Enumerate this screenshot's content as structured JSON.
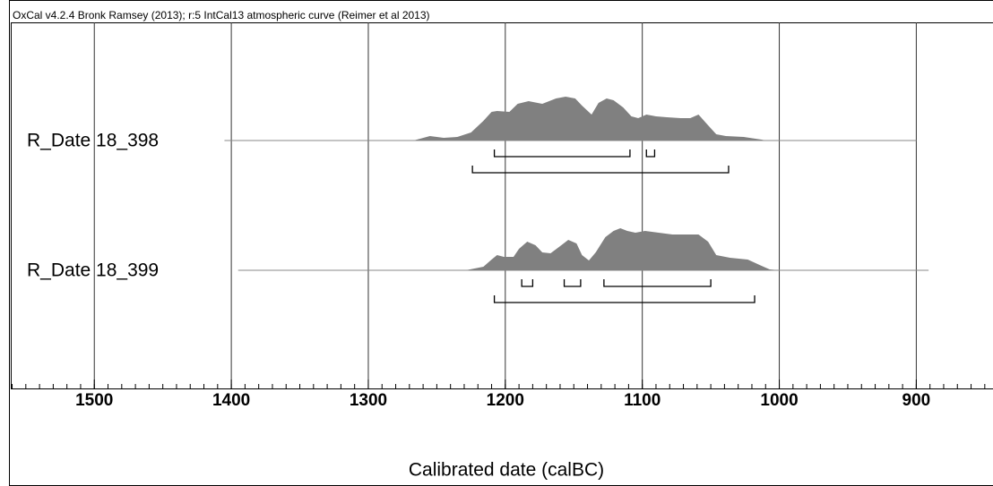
{
  "chart_data": {
    "type": "oxcal",
    "title": "OxCal v4.2.4 Bronk Ramsey (2013); r:5 IntCal13 atmospheric curve (Reimer et al 2013)",
    "x_label": "Calibrated date (calBC)",
    "xlim": [
      1561,
      844
    ],
    "xticks": [
      1500,
      1400,
      1300,
      1200,
      1100,
      1000,
      900
    ],
    "minor_xticks": [
      1560,
      1550,
      1540,
      1530,
      1520,
      1510,
      1500,
      1490,
      1480,
      1470,
      1460,
      1450,
      1440,
      1430,
      1420,
      1410,
      1400,
      1390,
      1380,
      1370,
      1360,
      1350,
      1340,
      1330,
      1320,
      1310,
      1300,
      1290,
      1280,
      1270,
      1260,
      1250,
      1240,
      1230,
      1220,
      1210,
      1200,
      1190,
      1180,
      1170,
      1160,
      1150,
      1140,
      1130,
      1120,
      1110,
      1100,
      1090,
      1080,
      1070,
      1060,
      1050,
      1040,
      1030,
      1020,
      1010,
      1000,
      990,
      980,
      970,
      960,
      950,
      940,
      930,
      920,
      910,
      900,
      890,
      880,
      870,
      860,
      850
    ],
    "grid": true,
    "color": "#808080",
    "series": [
      {
        "name": "R_Date 18_398",
        "range": [
          1405,
          900
        ],
        "x": [
          1267,
          1255,
          1245,
          1235,
          1225,
          1216,
          1210,
          1206,
          1197,
          1191,
          1183,
          1173,
          1163,
          1156,
          1149,
          1144,
          1137,
          1132,
          1126,
          1121,
          1114,
          1108,
          1103,
          1097,
          1090,
          1082,
          1072,
          1065,
          1059,
          1052,
          1046,
          1039,
          1026,
          1013,
          1010
        ],
        "values": [
          0,
          0.1,
          0.06,
          0.08,
          0.18,
          0.44,
          0.64,
          0.66,
          0.64,
          0.82,
          0.88,
          0.82,
          0.94,
          0.98,
          0.94,
          0.78,
          0.58,
          0.84,
          0.94,
          0.9,
          0.74,
          0.54,
          0.5,
          0.58,
          0.54,
          0.52,
          0.5,
          0.5,
          0.58,
          0.34,
          0.14,
          0.1,
          0.08,
          0.02,
          0
        ],
        "ranges_68": [
          [
            1208,
            1109
          ],
          [
            1097,
            1091
          ]
        ],
        "ranges_95": [
          [
            1224,
            1037
          ]
        ]
      },
      {
        "name": "R_Date 18_399",
        "range": [
          1395,
          891
        ],
        "x": [
          1229,
          1216,
          1210,
          1206,
          1201,
          1194,
          1190,
          1184,
          1178,
          1173,
          1167,
          1160,
          1154,
          1148,
          1144,
          1139,
          1134,
          1127,
          1121,
          1116,
          1111,
          1105,
          1098,
          1088,
          1078,
          1069,
          1059,
          1052,
          1046,
          1036,
          1023,
          1013,
          1007,
          1000
        ],
        "values": [
          0,
          0.08,
          0.24,
          0.34,
          0.3,
          0.3,
          0.48,
          0.64,
          0.56,
          0.4,
          0.38,
          0.54,
          0.68,
          0.6,
          0.34,
          0.22,
          0.4,
          0.74,
          0.88,
          0.94,
          0.88,
          0.84,
          0.88,
          0.84,
          0.8,
          0.8,
          0.8,
          0.64,
          0.34,
          0.28,
          0.24,
          0.1,
          0.02,
          0
        ],
        "ranges_68": [
          [
            1188,
            1180
          ],
          [
            1157,
            1145
          ],
          [
            1128,
            1050
          ]
        ],
        "ranges_95": [
          [
            1208,
            1018
          ]
        ]
      }
    ]
  }
}
